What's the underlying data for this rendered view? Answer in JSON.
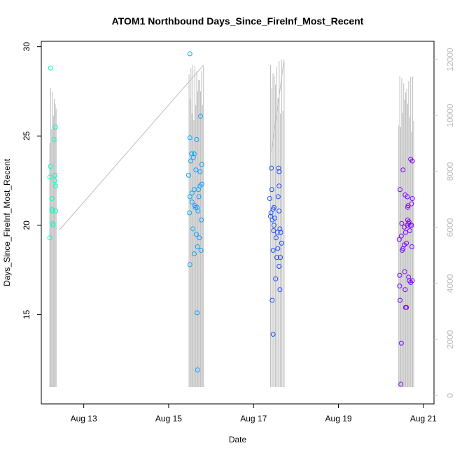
{
  "chart_data": {
    "type": "scatter",
    "title": "ATOM1 Northbound Days_Since_FireInf_Most_Recent",
    "xlabel": "Date",
    "ylabel": "Days_Since_FireInf_Most_Recent",
    "x_ticks": [
      "Aug 13",
      "Aug 15",
      "Aug 17",
      "Aug 19",
      "Aug 21"
    ],
    "x_tick_values": [
      13,
      15,
      17,
      19,
      21
    ],
    "xlim": [
      12.0,
      21.25
    ],
    "y_ticks": [
      "15",
      "20",
      "25",
      "30"
    ],
    "y_tick_values": [
      15,
      20,
      25,
      30
    ],
    "ylim": [
      10.0,
      30.3
    ],
    "y2_ticks": [
      "0",
      "2000",
      "4000",
      "6000",
      "8000",
      "10000",
      "12000"
    ],
    "y2_tick_values": [
      0,
      2000,
      4000,
      6000,
      8000,
      10000,
      12000
    ],
    "y2lim": [
      -300,
      12650
    ],
    "grid": false,
    "colors": {
      "scatter_gradient": [
        "#00ffbf",
        "#00bfff",
        "#1f3fff",
        "#7f00ff"
      ],
      "secondary_line": "#bebebe",
      "axis": "#000000",
      "secondary_axis": "#bebebe"
    },
    "series": [
      {
        "type": "scatter",
        "points": [
          [
            12.22,
            28.8
          ],
          [
            12.22,
            23.3
          ],
          [
            12.2,
            22.7
          ],
          [
            12.25,
            21.5
          ],
          [
            12.25,
            20.9
          ],
          [
            12.26,
            20.8
          ],
          [
            12.27,
            20.1
          ],
          [
            12.28,
            20.0
          ],
          [
            12.2,
            19.3
          ],
          [
            12.3,
            24.8
          ],
          [
            12.33,
            25.5
          ],
          [
            12.32,
            22.8
          ],
          [
            12.31,
            22.5
          ],
          [
            12.34,
            22.2
          ],
          [
            12.34,
            20.8
          ],
          [
            15.5,
            29.6
          ],
          [
            15.5,
            24.9
          ],
          [
            15.54,
            24.0
          ],
          [
            15.52,
            23.6
          ],
          [
            15.6,
            24.0
          ],
          [
            15.47,
            22.8
          ],
          [
            15.5,
            21.6
          ],
          [
            15.55,
            21.8
          ],
          [
            15.55,
            21.3
          ],
          [
            15.63,
            21.0
          ],
          [
            15.49,
            20.7
          ],
          [
            15.57,
            19.8
          ],
          [
            15.5,
            17.8
          ],
          [
            15.6,
            18.4
          ],
          [
            15.68,
            18.8
          ],
          [
            15.67,
            15.1
          ],
          [
            15.68,
            11.9
          ],
          [
            15.64,
            23.1
          ],
          [
            15.66,
            24.8
          ],
          [
            15.67,
            21.0
          ],
          [
            15.71,
            21.6
          ],
          [
            15.69,
            20.8
          ],
          [
            15.7,
            22.0
          ],
          [
            15.74,
            22.2
          ],
          [
            15.75,
            26.1
          ],
          [
            15.78,
            23.4
          ],
          [
            15.74,
            23.0
          ],
          [
            15.78,
            22.3
          ],
          [
            15.77,
            20.3
          ],
          [
            15.76,
            18.6
          ],
          [
            15.6,
            22.0
          ],
          [
            15.58,
            23.8
          ],
          [
            15.62,
            21.1
          ],
          [
            15.72,
            19.3
          ],
          [
            15.65,
            19.5
          ],
          [
            17.38,
            21.5
          ],
          [
            17.42,
            23.2
          ],
          [
            17.41,
            20.7
          ],
          [
            17.4,
            20.5
          ],
          [
            17.43,
            22.0
          ],
          [
            17.46,
            20.9
          ],
          [
            17.44,
            20.3
          ],
          [
            17.48,
            20.0
          ],
          [
            17.47,
            19.7
          ],
          [
            17.46,
            18.6
          ],
          [
            17.44,
            15.8
          ],
          [
            17.46,
            13.9
          ],
          [
            17.52,
            17.0
          ],
          [
            17.55,
            18.2
          ],
          [
            17.57,
            18.7
          ],
          [
            17.56,
            19.6
          ],
          [
            17.58,
            21.6
          ],
          [
            17.6,
            22.2
          ],
          [
            17.6,
            20.8
          ],
          [
            17.62,
            19.8
          ],
          [
            17.6,
            17.7
          ],
          [
            17.64,
            19.6
          ],
          [
            17.66,
            19.0
          ],
          [
            17.63,
            18.2
          ],
          [
            17.62,
            16.4
          ],
          [
            17.59,
            23.2
          ],
          [
            17.6,
            23.0
          ],
          [
            17.5,
            20.4
          ],
          [
            17.53,
            19.3
          ],
          [
            17.48,
            21.0
          ],
          [
            20.45,
            22.0
          ],
          [
            20.43,
            19.2
          ],
          [
            20.44,
            17.2
          ],
          [
            20.44,
            16.6
          ],
          [
            20.45,
            15.8
          ],
          [
            20.48,
            13.4
          ],
          [
            20.47,
            11.1
          ],
          [
            20.49,
            20.1
          ],
          [
            20.48,
            19.4
          ],
          [
            20.5,
            18.6
          ],
          [
            20.52,
            23.1
          ],
          [
            20.52,
            18.7
          ],
          [
            20.55,
            19.9
          ],
          [
            20.55,
            18.9
          ],
          [
            20.56,
            17.4
          ],
          [
            20.57,
            21.7
          ],
          [
            20.57,
            16.4
          ],
          [
            20.58,
            19.6
          ],
          [
            20.58,
            15.4
          ],
          [
            20.6,
            15.4
          ],
          [
            20.62,
            21.6
          ],
          [
            20.63,
            21.0
          ],
          [
            20.62,
            20.0
          ],
          [
            20.65,
            20.1
          ],
          [
            20.64,
            21.1
          ],
          [
            20.65,
            17.1
          ],
          [
            20.66,
            20.2
          ],
          [
            20.67,
            16.9
          ],
          [
            20.68,
            19.7
          ],
          [
            20.69,
            20.0
          ],
          [
            20.7,
            23.7
          ],
          [
            20.7,
            16.8
          ],
          [
            20.72,
            21.2
          ],
          [
            20.73,
            18.8
          ],
          [
            20.74,
            21.5
          ],
          [
            20.74,
            23.6
          ],
          [
            20.74,
            16.9
          ],
          [
            20.72,
            20.0
          ],
          [
            20.6,
            19.0
          ],
          [
            20.63,
            20.3
          ]
        ]
      },
      {
        "type": "line",
        "axis": "secondary",
        "segments": [
          {
            "start": [
              12.42,
              5900
            ],
            "end": [
              15.82,
              11800
            ]
          },
          {
            "start": [
              17.42,
              8700
            ],
            "end": [
              17.72,
              12000
            ]
          },
          {
            "start": [
              20.42,
              8600
            ]
          }
        ],
        "spike_clusters": [
          {
            "x_range": [
              12.2,
              12.35
            ],
            "count": 8,
            "peak": 11000
          },
          {
            "x_range": [
              15.48,
              15.82
            ],
            "count": 16,
            "peak": 11800
          },
          {
            "x_range": [
              17.4,
              17.72
            ],
            "count": 12,
            "peak": 12000
          },
          {
            "x_range": [
              20.42,
              20.77
            ],
            "count": 16,
            "peak": 11400
          }
        ],
        "baseline": 300
      }
    ]
  }
}
